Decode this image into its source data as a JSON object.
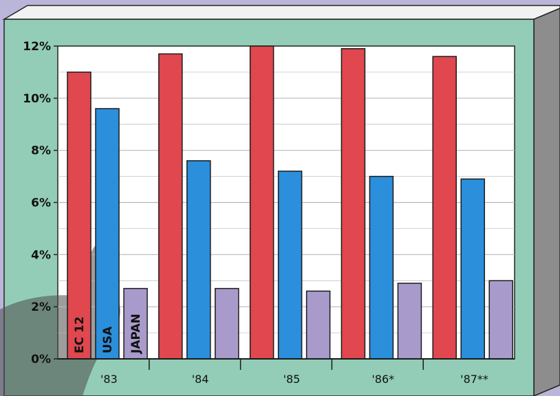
{
  "chart_data": {
    "type": "bar",
    "categories": [
      "'83",
      "'84",
      "'85",
      "'86*",
      "'87**"
    ],
    "series": [
      {
        "name": "EC 12",
        "color": "#e0474f",
        "values": [
          11.0,
          11.7,
          12.0,
          11.9,
          11.6
        ]
      },
      {
        "name": "USA",
        "color": "#2b8fdc",
        "values": [
          9.6,
          7.6,
          7.2,
          7.0,
          6.9
        ]
      },
      {
        "name": "JAPAN",
        "color": "#a99acc",
        "values": [
          2.7,
          2.7,
          2.6,
          2.9,
          3.0
        ]
      }
    ],
    "yticks": [
      0,
      2,
      4,
      6,
      8,
      10,
      12
    ],
    "ytick_labels": [
      "0%",
      "2%",
      "4%",
      "6%",
      "8%",
      "10%",
      "12%"
    ],
    "ylim": [
      0,
      12
    ],
    "grid": true,
    "legend": "series names printed inside the first group's bars",
    "colors": {
      "panel": "#93cdb7",
      "plot_bg": "#ffffff",
      "background": "#b9b6d9"
    }
  }
}
